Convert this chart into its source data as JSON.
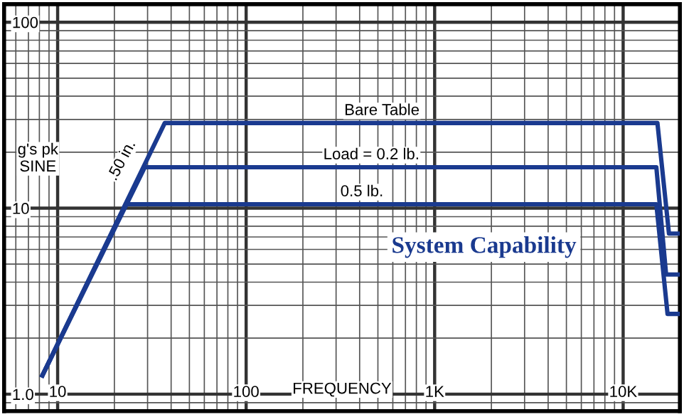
{
  "chart_data": {
    "type": "line",
    "title": "System Capability",
    "ylabel": "g's pk\nSINE",
    "xlabel": "FREQUENCY",
    "log": "xy",
    "xlim": [
      5.2,
      20000
    ],
    "ylim": [
      0.81,
      125
    ],
    "xticks": [
      10,
      100,
      {
        "value": 1000,
        "label": "1K"
      },
      {
        "value": 10000,
        "label": "10K"
      }
    ],
    "yticks": [
      {
        "value": 1,
        "label": "1.0"
      },
      10,
      100
    ],
    "grid": true,
    "legend": false,
    "marker": "none",
    "line_style": "solid",
    "annotations": [
      {
        "text": ".50 in.",
        "x": 22,
        "y": 18
      }
    ],
    "series": [
      {
        "name": "Bare Table",
        "color": "#1a3a8f",
        "x": [
          8.3,
          37,
          15200,
          17500,
          20000
        ],
        "values": [
          1.26,
          28.7,
          28.7,
          7.3,
          7.3
        ]
      },
      {
        "name": "Load = 0.2 lb.",
        "color": "#1a3a8f",
        "x": [
          8.3,
          29,
          15000,
          16900,
          20000
        ],
        "values": [
          1.26,
          16.6,
          16.6,
          4.4,
          4.4
        ]
      },
      {
        "name": "0.5 lb.",
        "color": "#1a3a8f",
        "x": [
          8.3,
          23,
          15000,
          17200,
          20000
        ],
        "values": [
          1.26,
          10.5,
          10.5,
          2.7,
          2.7
        ]
      }
    ]
  }
}
